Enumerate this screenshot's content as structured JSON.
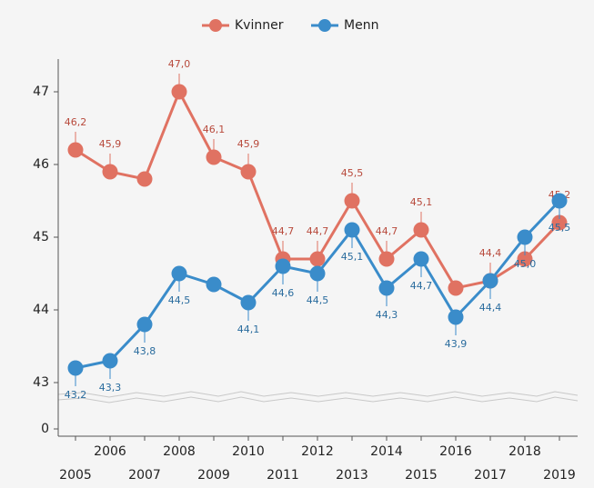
{
  "chart_data": {
    "type": "line",
    "categories": [
      "2005",
      "2006",
      "2007",
      "2008",
      "2009",
      "2010",
      "2011",
      "2012",
      "2013",
      "2014",
      "2015",
      "2016",
      "2017",
      "2018",
      "2019"
    ],
    "series": [
      {
        "name": "Kvinner",
        "color": "#e07262",
        "label_color": "#b84a3c",
        "values": [
          46.2,
          45.9,
          45.8,
          47.0,
          46.1,
          45.9,
          44.7,
          44.7,
          45.5,
          44.7,
          45.1,
          44.3,
          44.4,
          44.7,
          45.2
        ],
        "value_labels": [
          "46,2",
          "45,9",
          null,
          "47,0",
          "46,1",
          "45,9",
          "44,7",
          "44,7",
          "45,5",
          "44,7",
          "45,1",
          null,
          "44,4",
          null,
          "45,2"
        ]
      },
      {
        "name": "Menn",
        "color": "#3a8cca",
        "label_color": "#2a6c9e",
        "values": [
          43.2,
          43.3,
          43.8,
          44.5,
          44.35,
          44.1,
          44.6,
          44.5,
          45.1,
          44.3,
          44.7,
          43.9,
          44.4,
          45.0,
          45.5
        ],
        "value_labels": [
          "43,2",
          "43,3",
          "43,8",
          "44,5",
          null,
          "44,1",
          "44,6",
          "44,5",
          "45,1",
          "44,3",
          "44,7",
          "43,9",
          "44,4",
          "45,0",
          "45,5"
        ]
      }
    ],
    "ylim": [
      42.8,
      47.45
    ],
    "yticks": [
      0,
      43,
      44,
      45,
      46,
      47
    ],
    "axis_break": true,
    "legend": "top"
  }
}
